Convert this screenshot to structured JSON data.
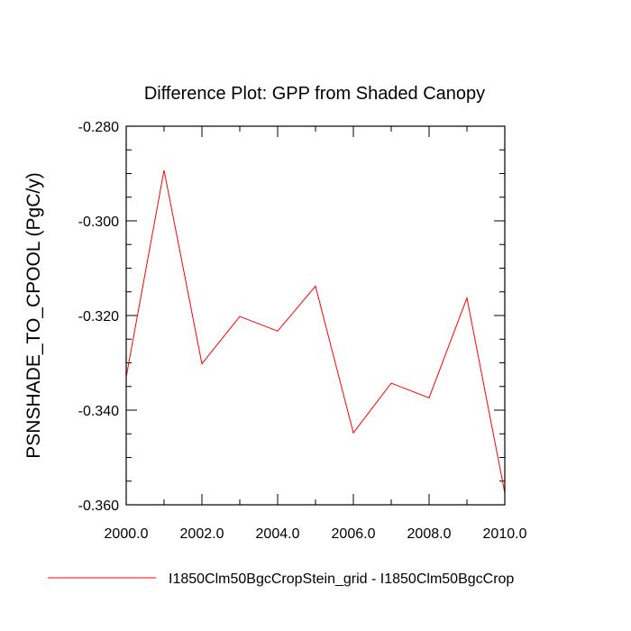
{
  "chart_data": {
    "type": "line",
    "title": "Difference Plot: GPP from Shaded Canopy",
    "xlabel": "",
    "ylabel": "PSNSHADE_TO_CPOOL  (PgC/y)",
    "xlim": [
      2000,
      2010
    ],
    "ylim": [
      -0.36,
      -0.28
    ],
    "x_ticks": [
      "2000.0",
      "2002.0",
      "2004.0",
      "2006.0",
      "2008.0",
      "2010.0"
    ],
    "y_ticks": [
      "-0.280",
      "-0.300",
      "-0.320",
      "-0.340",
      "-0.360"
    ],
    "grid": false,
    "legend_position": "bottom",
    "series": [
      {
        "name": "I1850Clm50BgcCropStein_grid - I1850Clm50BgcCrop",
        "color": "#ff0000",
        "x": [
          2000,
          2001,
          2002,
          2003,
          2004,
          2005,
          2006,
          2007,
          2008,
          2009,
          2010
        ],
        "values": [
          -0.333,
          -0.2893,
          -0.3302,
          -0.3202,
          -0.3233,
          -0.3138,
          -0.3448,
          -0.3343,
          -0.3374,
          -0.3163,
          -0.3575
        ]
      }
    ]
  }
}
